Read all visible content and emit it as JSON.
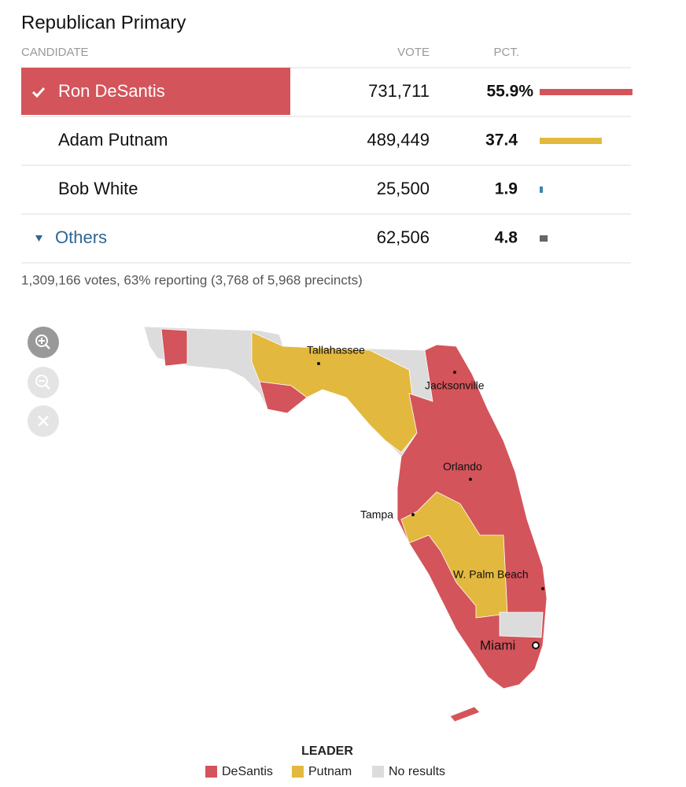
{
  "header": {
    "title": "Republican Primary"
  },
  "table": {
    "columns": [
      "CANDIDATE",
      "VOTE",
      "PCT."
    ],
    "rows": [
      {
        "candidate": "Ron DeSantis",
        "votes": "731,711",
        "pct": {
          "value": 55.9,
          "label": "55.9%"
        },
        "color": "#d3545a",
        "winner": true
      },
      {
        "candidate": "Adam Putnam",
        "votes": "489,449",
        "pct": 37.4,
        "color": "#e3b83e"
      },
      {
        "candidate": "Bob White",
        "votes": "25,500",
        "pct": 1.9,
        "color": "#3a86b0"
      },
      {
        "candidate": "Others",
        "votes": "62,506",
        "pct": 4.8,
        "color": "#666666",
        "expandable": true
      }
    ],
    "footnote": "1,309,166 votes, 63% reporting (3,768 of 5,968 precincts)"
  },
  "map": {
    "cities": [
      "Tallahassee",
      "Jacksonville",
      "Orlando",
      "Tampa",
      "W. Palm Beach",
      "Miami"
    ],
    "legend": {
      "title": "LEADER",
      "items": [
        "DeSantis",
        "Putnam",
        "No results"
      ]
    }
  }
}
